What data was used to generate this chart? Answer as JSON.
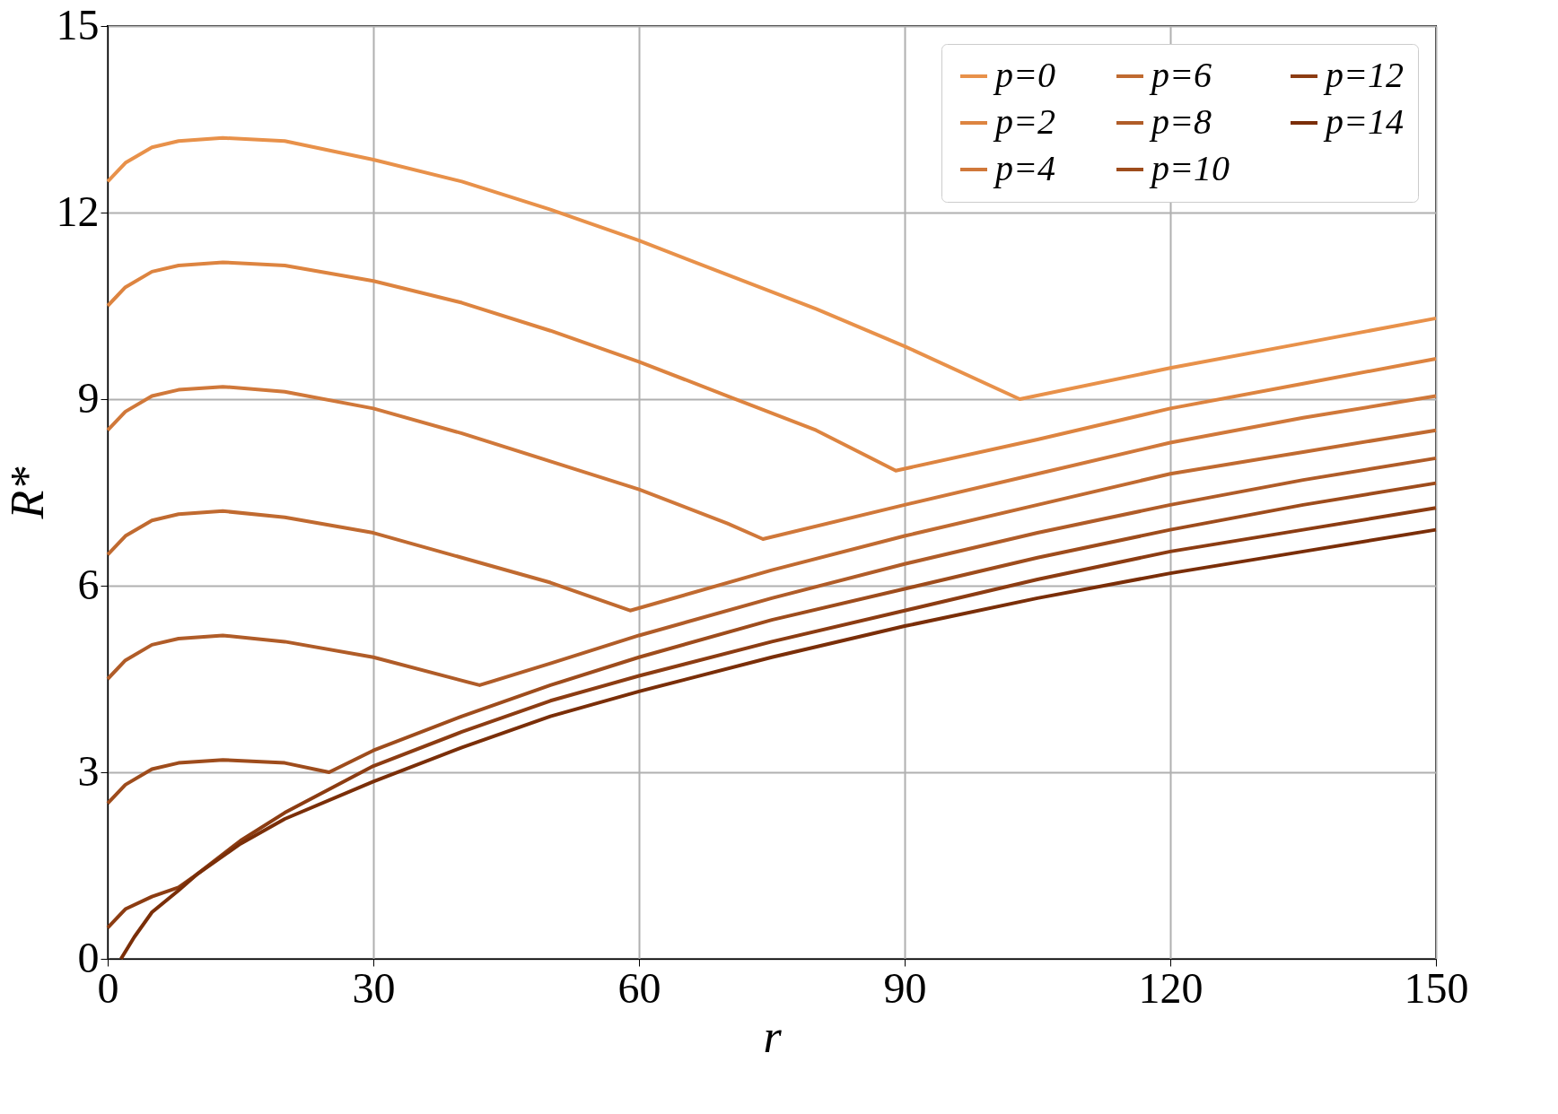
{
  "chart_data": {
    "type": "line",
    "xlabel": "r",
    "ylabel": "R*",
    "xlim": [
      0,
      150
    ],
    "ylim": [
      0,
      15
    ],
    "xticks": [
      0,
      30,
      60,
      90,
      120,
      150
    ],
    "yticks": [
      0,
      3,
      6,
      9,
      12,
      15
    ],
    "grid": true,
    "legend": "top right",
    "line_style": "solid",
    "marker": "none",
    "series": [
      {
        "name": "p=0",
        "color": "#e8914a",
        "x": [
          0,
          2,
          5,
          8,
          13,
          20,
          30,
          40,
          50,
          60,
          70,
          80,
          90,
          103,
          120,
          135,
          150
        ],
        "values": [
          12.5,
          12.8,
          13.05,
          13.15,
          13.2,
          13.15,
          12.85,
          12.5,
          12.05,
          11.55,
          11.0,
          10.45,
          9.85,
          9.0,
          9.5,
          9.9,
          10.3
        ]
      },
      {
        "name": "p=2",
        "color": "#dd8440",
        "x": [
          0,
          2,
          5,
          8,
          13,
          20,
          30,
          40,
          50,
          60,
          70,
          80,
          89,
          105,
          120,
          135,
          150
        ],
        "values": [
          10.5,
          10.8,
          11.05,
          11.15,
          11.2,
          11.15,
          10.9,
          10.55,
          10.1,
          9.6,
          9.05,
          8.5,
          7.85,
          8.35,
          8.85,
          9.25,
          9.65
        ]
      },
      {
        "name": "p=4",
        "color": "#d0783a",
        "x": [
          0,
          2,
          5,
          8,
          13,
          20,
          30,
          40,
          50,
          60,
          70,
          74,
          90,
          105,
          120,
          135,
          150
        ],
        "values": [
          8.5,
          8.8,
          9.05,
          9.15,
          9.2,
          9.12,
          8.85,
          8.45,
          8.0,
          7.55,
          7.0,
          6.75,
          7.3,
          7.8,
          8.3,
          8.7,
          9.05
        ]
      },
      {
        "name": "p=6",
        "color": "#c06a30",
        "x": [
          0,
          2,
          5,
          8,
          13,
          20,
          30,
          40,
          50,
          59,
          75,
          90,
          105,
          120,
          135,
          150
        ],
        "values": [
          6.5,
          6.8,
          7.05,
          7.15,
          7.2,
          7.1,
          6.85,
          6.45,
          6.05,
          5.6,
          6.25,
          6.8,
          7.3,
          7.8,
          8.15,
          8.5
        ]
      },
      {
        "name": "p=8",
        "color": "#b05c28",
        "x": [
          0,
          2,
          5,
          8,
          13,
          20,
          30,
          42,
          50,
          60,
          75,
          90,
          105,
          120,
          135,
          150
        ],
        "values": [
          4.5,
          4.8,
          5.05,
          5.15,
          5.2,
          5.1,
          4.85,
          4.4,
          4.75,
          5.2,
          5.8,
          6.35,
          6.85,
          7.3,
          7.7,
          8.05
        ]
      },
      {
        "name": "p=10",
        "color": "#9e4c1c",
        "x": [
          0,
          2,
          5,
          8,
          13,
          20,
          25,
          30,
          40,
          50,
          60,
          75,
          90,
          105,
          120,
          135,
          150
        ],
        "values": [
          2.5,
          2.8,
          3.05,
          3.15,
          3.2,
          3.15,
          3.0,
          3.35,
          3.9,
          4.4,
          4.85,
          5.45,
          5.95,
          6.45,
          6.9,
          7.3,
          7.65
        ]
      },
      {
        "name": "p=12",
        "color": "#8c3c12",
        "x": [
          0,
          2,
          5,
          8,
          10,
          15,
          20,
          30,
          40,
          50,
          60,
          75,
          90,
          105,
          120,
          135,
          150
        ],
        "values": [
          0.5,
          0.8,
          1.0,
          1.15,
          1.35,
          1.9,
          2.35,
          3.1,
          3.65,
          4.15,
          4.55,
          5.1,
          5.6,
          6.1,
          6.55,
          6.9,
          7.25
        ]
      },
      {
        "name": "p=14",
        "color": "#7a2e08",
        "x": [
          1.5,
          3,
          5,
          8,
          10,
          15,
          20,
          30,
          40,
          50,
          60,
          75,
          90,
          105,
          120,
          135,
          150
        ],
        "values": [
          0,
          0.35,
          0.75,
          1.1,
          1.35,
          1.85,
          2.25,
          2.85,
          3.4,
          3.9,
          4.3,
          4.85,
          5.35,
          5.8,
          6.2,
          6.55,
          6.9
        ]
      }
    ]
  }
}
